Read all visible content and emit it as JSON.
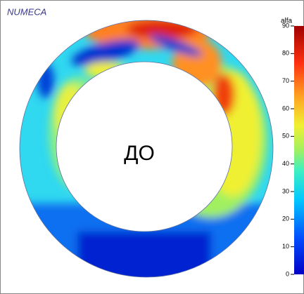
{
  "header": {
    "brand": "NUMECA"
  },
  "plot": {
    "label": "ДО"
  },
  "colorbar": {
    "title": "alfa",
    "range": [
      0,
      90
    ],
    "ticks": [
      0,
      10,
      20,
      30,
      40,
      50,
      60,
      70,
      80,
      90
    ]
  }
}
